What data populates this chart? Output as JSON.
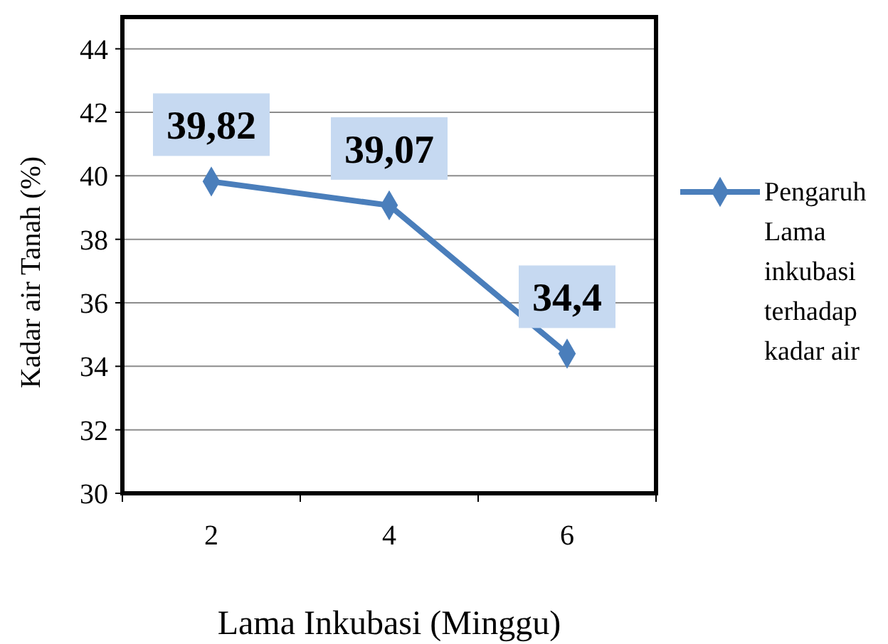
{
  "chart_data": {
    "type": "line",
    "xlabel": "Lama Inkubasi (Minggu)",
    "ylabel": "Kadar air Tanah (%)",
    "categories": [
      "2",
      "4",
      "6"
    ],
    "series": [
      {
        "name": "Pengaruh Lama inkubasi terhadap kadar air",
        "color": "#4a7ebb",
        "values": [
          39.82,
          39.07,
          34.4
        ],
        "value_labels": [
          "39,82",
          "39,07",
          "34,4"
        ]
      }
    ],
    "ylim": [
      30,
      45
    ],
    "yticks": [
      30,
      32,
      34,
      36,
      38,
      40,
      42,
      44
    ],
    "grid": "y",
    "legend": "right",
    "marker": "diamond",
    "line_style": "solid"
  }
}
